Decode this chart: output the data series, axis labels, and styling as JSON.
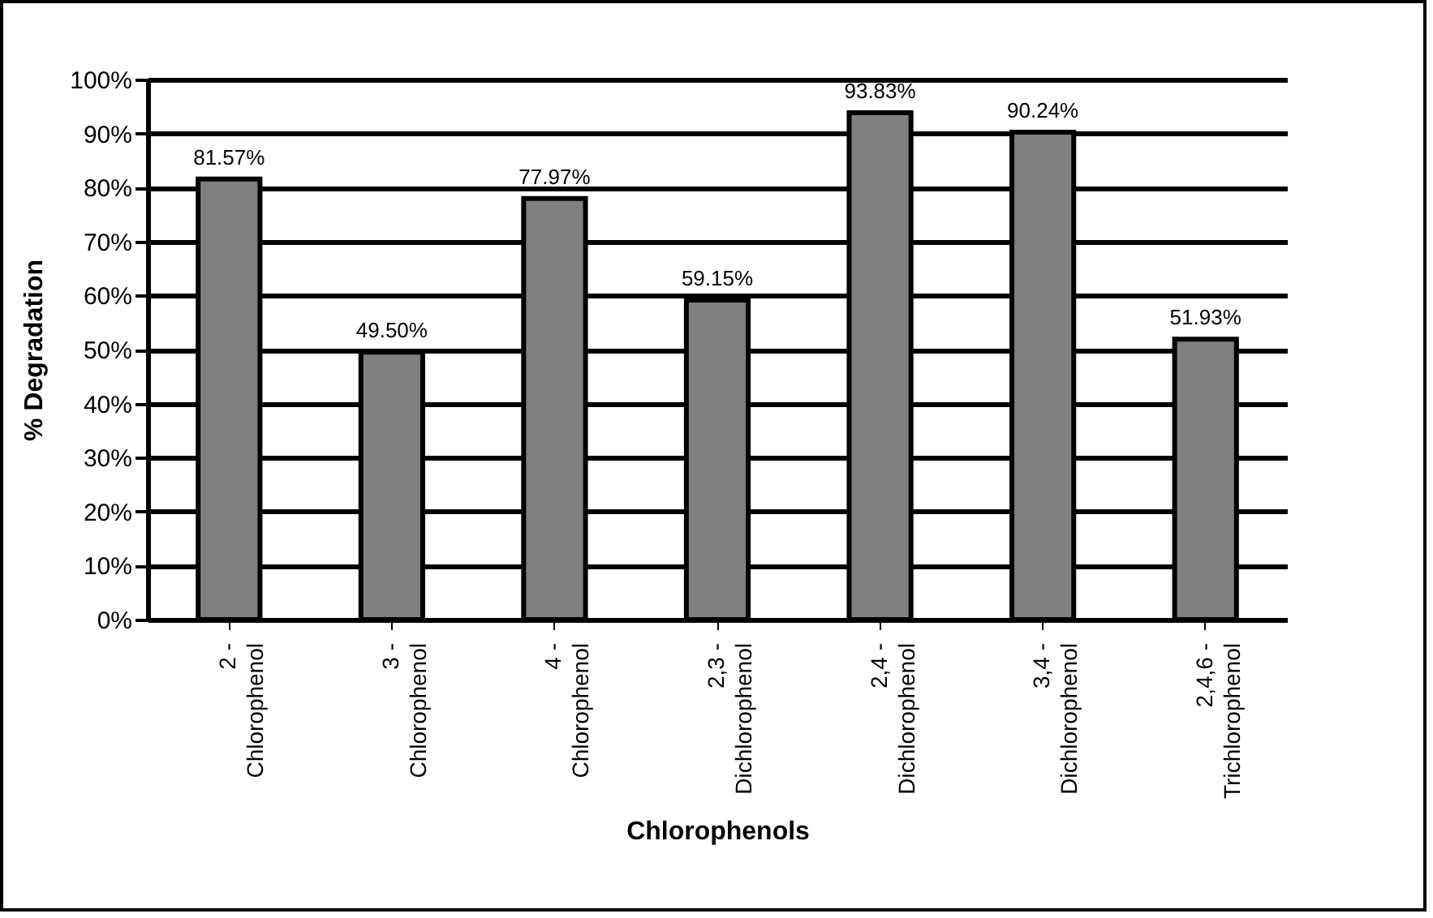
{
  "chart_data": {
    "type": "bar",
    "xlabel": "Chlorophenols",
    "ylabel": "% Degradation",
    "categories": [
      "2 -\nChlorophenol",
      "3 -\nChlorophenol",
      "4 -\nChlorophenol",
      "2,3 -\nDichlorophenol",
      "2,4 -\nDichlorophenol",
      "3,4 -\nDichlorophenol",
      "2,4,6 -\nTrichlorophenol"
    ],
    "values": [
      81.57,
      49.5,
      77.97,
      59.15,
      93.83,
      90.24,
      51.93
    ],
    "value_labels": [
      "81.57%",
      "49.50%",
      "77.97%",
      "59.15%",
      "93.83%",
      "90.24%",
      "51.93%"
    ],
    "color": "#808080",
    "ylim": [
      0,
      100
    ],
    "yticks": [
      {
        "value": 0,
        "label": "0%"
      },
      {
        "value": 10,
        "label": "10%"
      },
      {
        "value": 20,
        "label": "20%"
      },
      {
        "value": 30,
        "label": "30%"
      },
      {
        "value": 40,
        "label": "40%"
      },
      {
        "value": 50,
        "label": "50%"
      },
      {
        "value": 60,
        "label": "60%"
      },
      {
        "value": 70,
        "label": "70%"
      },
      {
        "value": 80,
        "label": "80%"
      },
      {
        "value": 90,
        "label": "90%"
      },
      {
        "value": 100,
        "label": "100%"
      }
    ],
    "grid": "y"
  }
}
